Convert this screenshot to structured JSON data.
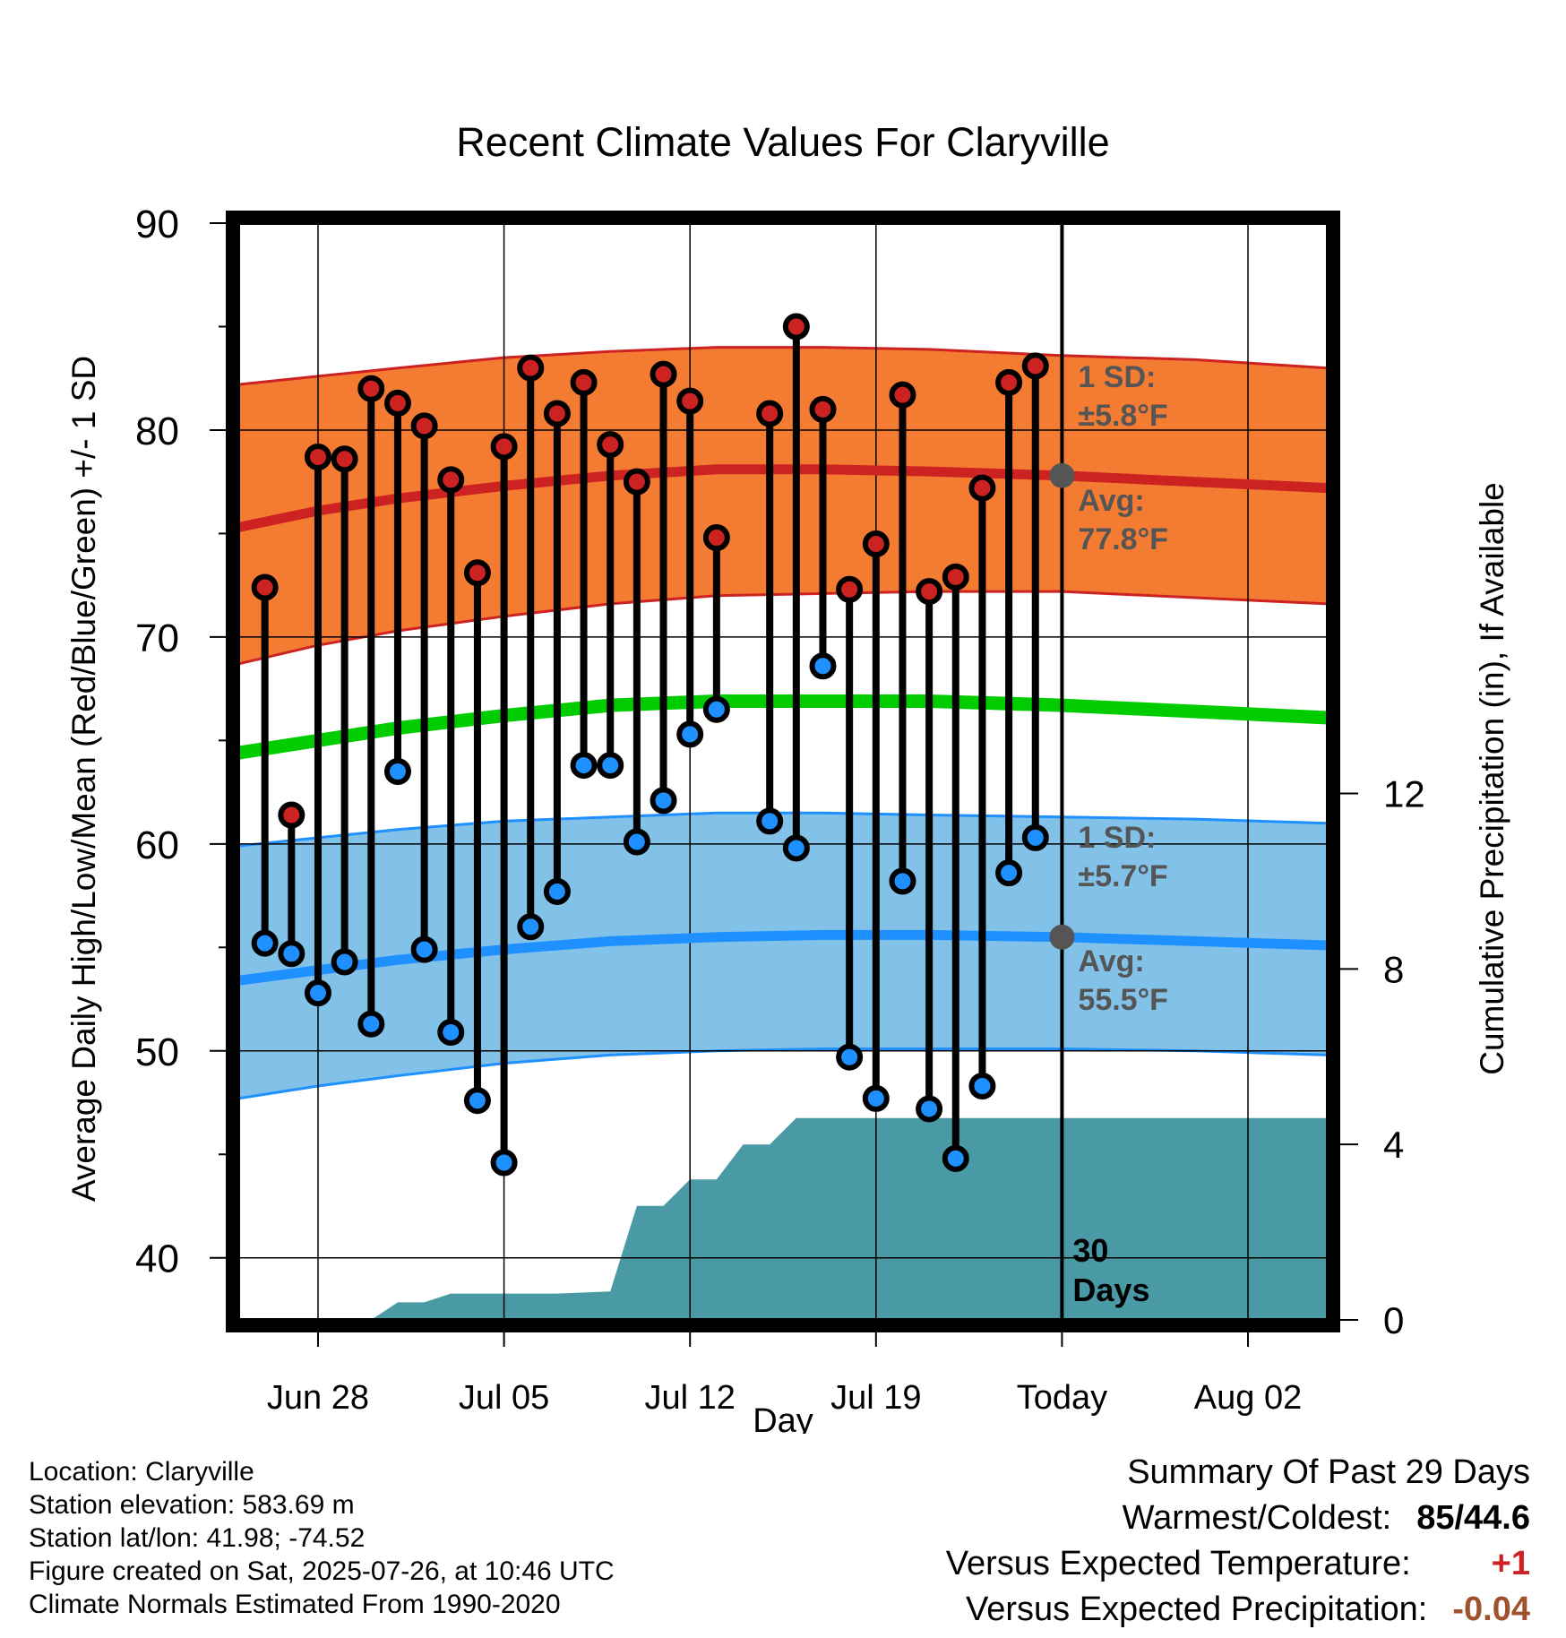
{
  "title": "Recent Climate Values For Claryville",
  "xlabel": "Day",
  "ylabel_left": "Average Daily High/Low/Mean (Red/Blue/Green) +/- 1 SD",
  "ylabel_right": "Cumulative Precipitation (in), If Available",
  "today_label": "30\nDays",
  "annotations": {
    "high_sd_line1": "1 SD:",
    "high_sd_line2": "±5.8°F",
    "high_avg_line1": "Avg:",
    "high_avg_line2": "77.8°F",
    "low_sd_line1": "1 SD:",
    "low_sd_line2": "±5.7°F",
    "low_avg_line1": "Avg:",
    "low_avg_line2": "55.5°F"
  },
  "info": [
    "Location: Claryville",
    "Station elevation: 583.69 m",
    "Station lat/lon: 41.98; -74.52",
    "Figure created on Sat, 2025-07-26, at 10:46 UTC",
    "Climate Normals Estimated From 1990-2020"
  ],
  "summary": {
    "title": "Summary Of Past 29 Days",
    "warmest_coldest_label": "Warmest/Coldest:",
    "warmest_coldest_value": "85/44.6",
    "temp_label": "Versus Expected Temperature:",
    "temp_value": "+1",
    "precip_label": "Versus Expected Precipitation:",
    "precip_value": "-0.04"
  },
  "colors": {
    "high_band": "#f47b32",
    "high_line": "#cc2222",
    "low_band": "#82c1e8",
    "low_line": "#1e90ff",
    "mean_line": "#00cc00",
    "precip": "#4a9aa5",
    "high_dot": "#cc2222",
    "low_dot": "#1e90ff",
    "annotation": "#555555",
    "temp_value": "#cc2222",
    "precip_value": "#a0522d"
  },
  "chart_data": {
    "type": "line",
    "x_tick_labels": [
      "Jun 28",
      "Jul 05",
      "Jul 12",
      "Jul 19",
      "Today",
      "Aug 02"
    ],
    "y_left_ticks": [
      40,
      50,
      60,
      70,
      80,
      90
    ],
    "y_right_ticks": [
      0,
      4,
      8,
      12
    ],
    "y_left_range": [
      37,
      90
    ],
    "y_right_range": [
      0,
      25
    ],
    "x_range": [
      "Jun 25",
      "Aug 05"
    ],
    "grid": true,
    "daily": [
      {
        "date": "Jun 26",
        "high": 72.4,
        "low": 55.2
      },
      {
        "date": "Jun 27",
        "high": 61.4,
        "low": 54.7
      },
      {
        "date": "Jun 28",
        "high": 78.7,
        "low": 52.8
      },
      {
        "date": "Jun 29",
        "high": 78.6,
        "low": 54.3
      },
      {
        "date": "Jun 30",
        "high": 82.0,
        "low": 51.3
      },
      {
        "date": "Jul 01",
        "high": 81.3,
        "low": 63.5
      },
      {
        "date": "Jul 02",
        "high": 80.2,
        "low": 54.9
      },
      {
        "date": "Jul 03",
        "high": 77.6,
        "low": 50.9
      },
      {
        "date": "Jul 04",
        "high": 73.1,
        "low": 47.6
      },
      {
        "date": "Jul 05",
        "high": 79.2,
        "low": 44.6
      },
      {
        "date": "Jul 06",
        "high": 83.0,
        "low": 56.0
      },
      {
        "date": "Jul 07",
        "high": 80.8,
        "low": 57.7
      },
      {
        "date": "Jul 08",
        "high": 82.3,
        "low": 63.8
      },
      {
        "date": "Jul 09",
        "high": 79.3,
        "low": 63.8
      },
      {
        "date": "Jul 10",
        "high": 77.5,
        "low": 60.1
      },
      {
        "date": "Jul 11",
        "high": 82.7,
        "low": 62.1
      },
      {
        "date": "Jul 12",
        "high": 81.4,
        "low": 65.3
      },
      {
        "date": "Jul 13",
        "high": 74.8,
        "low": 66.5
      },
      {
        "date": "Jul 15",
        "high": 80.8,
        "low": 61.1
      },
      {
        "date": "Jul 16",
        "high": 85.0,
        "low": 59.8
      },
      {
        "date": "Jul 17",
        "high": 81.0,
        "low": 68.6
      },
      {
        "date": "Jul 18",
        "high": 72.3,
        "low": 49.7
      },
      {
        "date": "Jul 19",
        "high": 74.5,
        "low": 47.7
      },
      {
        "date": "Jul 20",
        "high": 81.7,
        "low": 58.2
      },
      {
        "date": "Jul 21",
        "high": 72.2,
        "low": 47.2
      },
      {
        "date": "Jul 22",
        "high": 72.9,
        "low": 44.8
      },
      {
        "date": "Jul 23",
        "high": 77.2,
        "low": 48.3
      },
      {
        "date": "Jul 24",
        "high": 82.3,
        "low": 58.6
      },
      {
        "date": "Jul 25",
        "high": 83.1,
        "low": 60.3
      }
    ],
    "normals": [
      {
        "date": "Jun 25",
        "high_avg": 75.3,
        "high_sd_low": 68.7,
        "high_sd_high": 82.2,
        "mean": 64.4,
        "low_avg": 53.4,
        "low_sd_low": 47.7,
        "low_sd_high": 59.9
      },
      {
        "date": "Jun 28",
        "high_avg": 76.1,
        "high_sd_low": 69.6,
        "high_sd_high": 82.6,
        "mean": 65.0,
        "low_avg": 53.9,
        "low_sd_low": 48.3,
        "low_sd_high": 60.3
      },
      {
        "date": "Jul 01",
        "high_avg": 76.7,
        "high_sd_low": 70.3,
        "high_sd_high": 83.0,
        "mean": 65.6,
        "low_avg": 54.4,
        "low_sd_low": 48.8,
        "low_sd_high": 60.7
      },
      {
        "date": "Jul 05",
        "high_avg": 77.3,
        "high_sd_low": 71.0,
        "high_sd_high": 83.5,
        "mean": 66.2,
        "low_avg": 54.9,
        "low_sd_low": 49.4,
        "low_sd_high": 61.1
      },
      {
        "date": "Jul 09",
        "high_avg": 77.8,
        "high_sd_low": 71.6,
        "high_sd_high": 83.8,
        "mean": 66.7,
        "low_avg": 55.3,
        "low_sd_low": 49.8,
        "low_sd_high": 61.3
      },
      {
        "date": "Jul 13",
        "high_avg": 78.1,
        "high_sd_low": 72.0,
        "high_sd_high": 84.0,
        "mean": 66.9,
        "low_avg": 55.5,
        "low_sd_low": 50.0,
        "low_sd_high": 61.5
      },
      {
        "date": "Jul 17",
        "high_avg": 78.1,
        "high_sd_low": 72.1,
        "high_sd_high": 84.0,
        "mean": 66.9,
        "low_avg": 55.6,
        "low_sd_low": 50.1,
        "low_sd_high": 61.5
      },
      {
        "date": "Jul 21",
        "high_avg": 78.0,
        "high_sd_low": 72.2,
        "high_sd_high": 83.9,
        "mean": 66.9,
        "low_avg": 55.6,
        "low_sd_low": 50.1,
        "low_sd_high": 61.4
      },
      {
        "date": "Jul 26",
        "high_avg": 77.8,
        "high_sd_low": 72.2,
        "high_sd_high": 83.6,
        "mean": 66.7,
        "low_avg": 55.5,
        "low_sd_low": 50.1,
        "low_sd_high": 61.3
      },
      {
        "date": "Jul 31",
        "high_avg": 77.5,
        "high_sd_low": 71.9,
        "high_sd_high": 83.4,
        "mean": 66.4,
        "low_avg": 55.3,
        "low_sd_low": 50.0,
        "low_sd_high": 61.2
      },
      {
        "date": "Aug 05",
        "high_avg": 77.2,
        "high_sd_low": 71.6,
        "high_sd_high": 83.0,
        "mean": 66.1,
        "low_avg": 55.1,
        "low_sd_low": 49.8,
        "low_sd_high": 61.0
      }
    ],
    "precip_cumulative": [
      {
        "date": "Jun 25",
        "value": 0
      },
      {
        "date": "Jun 30",
        "value": 0
      },
      {
        "date": "Jul 01",
        "value": 0.4
      },
      {
        "date": "Jul 02",
        "value": 0.4
      },
      {
        "date": "Jul 03",
        "value": 0.6
      },
      {
        "date": "Jul 07",
        "value": 0.6
      },
      {
        "date": "Jul 09",
        "value": 0.65
      },
      {
        "date": "Jul 10",
        "value": 2.6
      },
      {
        "date": "Jul 11",
        "value": 2.6
      },
      {
        "date": "Jul 12",
        "value": 3.2
      },
      {
        "date": "Jul 13",
        "value": 3.2
      },
      {
        "date": "Jul 14",
        "value": 4.0
      },
      {
        "date": "Jul 15",
        "value": 4.0
      },
      {
        "date": "Jul 16",
        "value": 4.6
      },
      {
        "date": "Aug 05",
        "value": 4.6
      }
    ]
  }
}
